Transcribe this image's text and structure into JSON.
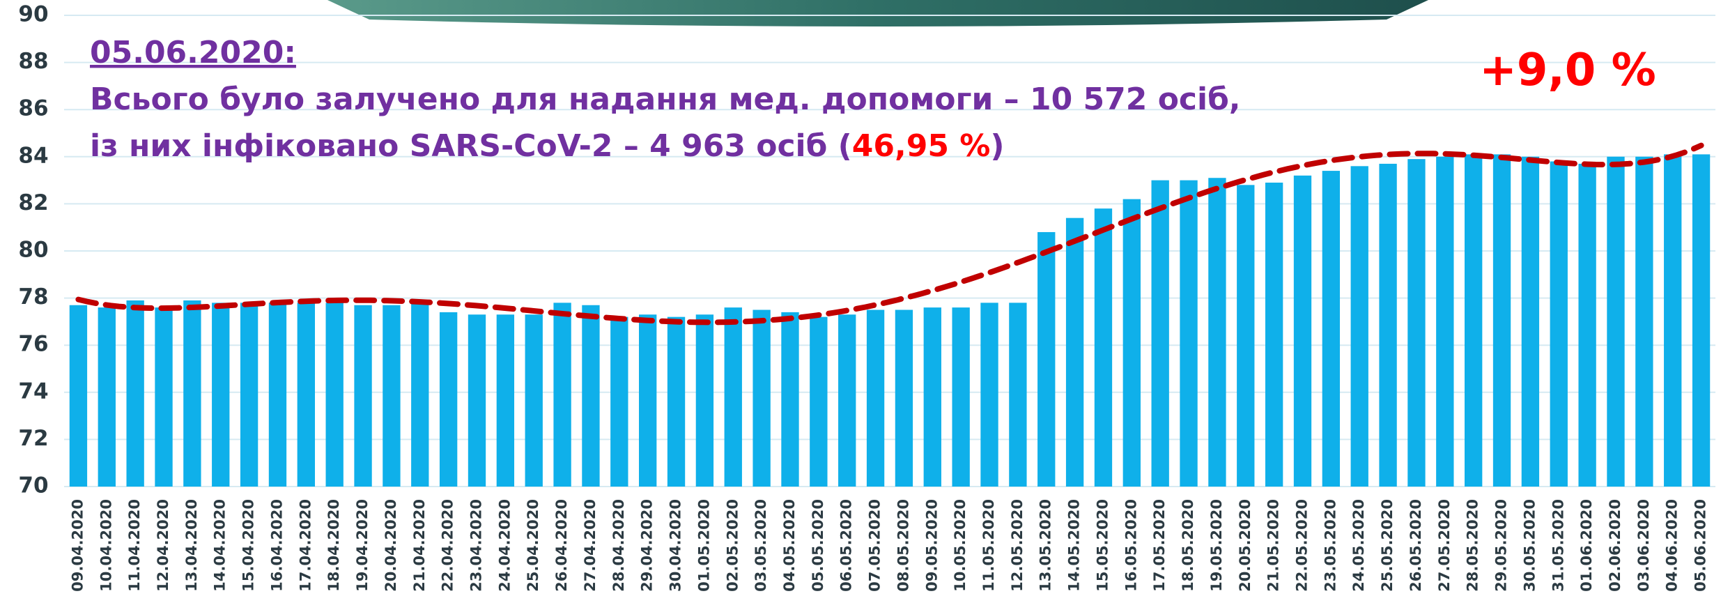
{
  "chart_data": {
    "type": "bar",
    "annotations": {
      "date": "05.06.2020:",
      "line1": "Всього було залучено для надання мед. допомоги –  10 572 осіб,",
      "line2_start": "із них інфіковано SARS-CoV-2 – 4 963 осіб (",
      "line2_highlight": "46,95 %",
      "line2_end": ")",
      "change": "+9,0 %"
    },
    "categories": [
      "09.04.2020",
      "10.04.2020",
      "11.04.2020",
      "12.04.2020",
      "13.04.2020",
      "14.04.2020",
      "15.04.2020",
      "16.04.2020",
      "17.04.2020",
      "18.04.2020",
      "19.04.2020",
      "20.04.2020",
      "21.04.2020",
      "22.04.2020",
      "23.04.2020",
      "24.04.2020",
      "25.04.2020",
      "26.04.2020",
      "27.04.2020",
      "28.04.2020",
      "29.04.2020",
      "30.04.2020",
      "01.05.2020",
      "02.05.2020",
      "03.05.2020",
      "04.05.2020",
      "05.05.2020",
      "06.05.2020",
      "07.05.2020",
      "08.05.2020",
      "09.05.2020",
      "10.05.2020",
      "11.05.2020",
      "12.05.2020",
      "13.05.2020",
      "14.05.2020",
      "15.05.2020",
      "16.05.2020",
      "17.05.2020",
      "18.05.2020",
      "19.05.2020",
      "20.05.2020",
      "21.05.2020",
      "22.05.2020",
      "23.05.2020",
      "24.05.2020",
      "25.05.2020",
      "26.05.2020",
      "27.05.2020",
      "28.05.2020",
      "29.05.2020",
      "30.05.2020",
      "31.05.2020",
      "01.06.2020",
      "02.06.2020",
      "03.06.2020",
      "04.06.2020",
      "05.06.2020"
    ],
    "values": [
      77.7,
      77.6,
      77.9,
      77.6,
      77.9,
      77.8,
      77.8,
      77.8,
      77.8,
      77.8,
      77.7,
      77.7,
      77.8,
      77.4,
      77.3,
      77.3,
      77.3,
      77.8,
      77.7,
      77.2,
      77.3,
      77.2,
      77.3,
      77.6,
      77.5,
      77.4,
      77.2,
      77.3,
      77.5,
      77.5,
      77.6,
      77.6,
      77.8,
      77.8,
      80.8,
      81.4,
      81.8,
      82.2,
      83.0,
      83.0,
      83.1,
      82.8,
      82.9,
      83.2,
      83.4,
      83.6,
      83.7,
      83.9,
      84.0,
      84.1,
      84.1,
      84.0,
      83.8,
      83.7,
      84.0,
      84.0,
      84.1,
      84.1
    ],
    "color": "#0fb0ea",
    "trendline": {
      "type": "polynomial",
      "color": "#c00000",
      "dashed": true
    },
    "ylim": [
      70,
      90
    ],
    "yticks": [
      70,
      72,
      74,
      76,
      78,
      80,
      82,
      84,
      86,
      88,
      90
    ],
    "grid": true
  }
}
